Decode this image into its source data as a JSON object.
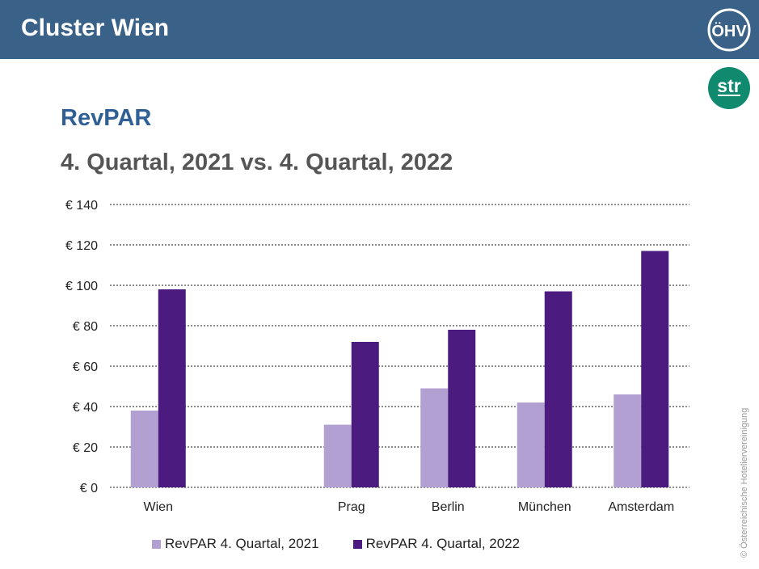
{
  "header": {
    "title": "Cluster Wien"
  },
  "logos": {
    "oehv": "ÖHV",
    "str": "str"
  },
  "copyright": "© Österreichische Hoteliervereinigung",
  "colors": {
    "header_bg": "#3a6289",
    "series_2021": "#b3a0d2",
    "series_2022": "#4b1b7f",
    "title": "#2f5f94"
  },
  "chart_data": {
    "type": "bar",
    "title": "RevPAR",
    "subtitle": "4. Quartal, 2021 vs. 4. Quartal, 2022",
    "categories": [
      "Wien",
      "",
      "Prag",
      "Berlin",
      "München",
      "Amsterdam"
    ],
    "series": [
      {
        "name": "RevPAR 4. Quartal, 2021",
        "values": [
          38,
          null,
          31,
          49,
          42,
          46
        ],
        "color": "#b3a0d2"
      },
      {
        "name": "RevPAR 4. Quartal, 2022",
        "values": [
          98,
          null,
          72,
          78,
          97,
          117
        ],
        "color": "#4b1b7f"
      }
    ],
    "y_ticks": [
      "€ 0",
      "€ 20",
      "€ 40",
      "€ 60",
      "€ 80",
      "€ 100",
      "€ 120",
      "€ 140"
    ],
    "y_tick_values": [
      0,
      20,
      40,
      60,
      80,
      100,
      120,
      140
    ],
    "ylim": [
      0,
      140
    ],
    "grid": true,
    "legend_position": "bottom"
  }
}
